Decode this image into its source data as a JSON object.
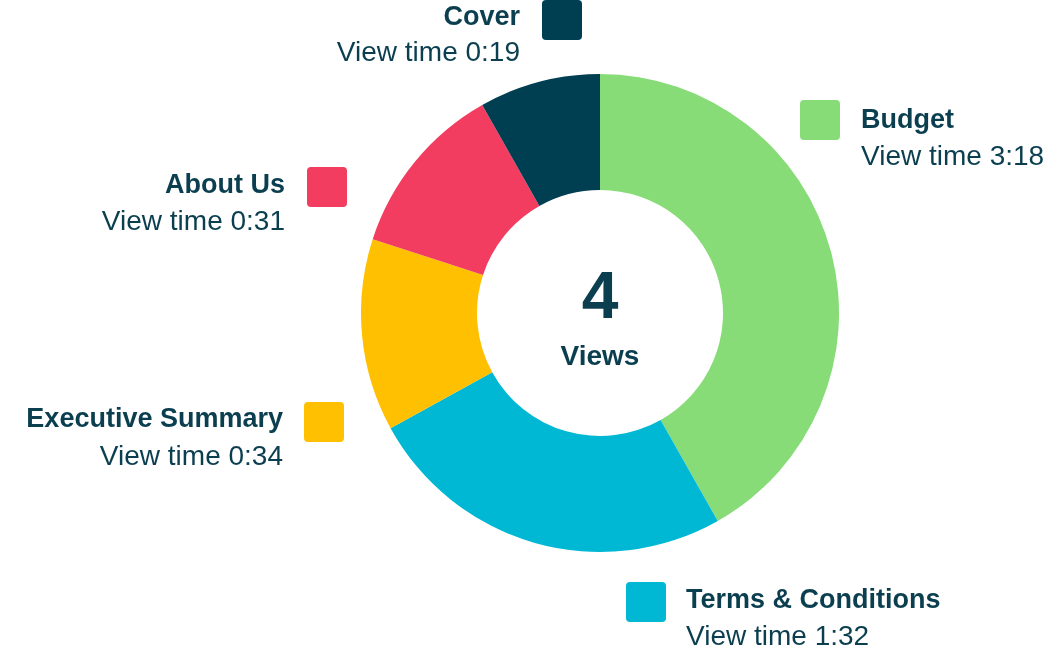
{
  "chart_data": {
    "type": "donut",
    "categories": [
      "Budget",
      "Terms & Conditions",
      "Executive Summary",
      "About Us",
      "Cover"
    ],
    "values": [
      41.8,
      25.2,
      13.0,
      11.8,
      8.2
    ],
    "colors": [
      "#87dc78",
      "#00b8d4",
      "#ffc001",
      "#f23d60",
      "#003e52"
    ],
    "value_labels": [
      "View time 3:18",
      "View time 1:32",
      "View time 0:34",
      "View time 0:31",
      "View time 0:19"
    ],
    "annotations": [
      "4",
      "Views"
    ],
    "legend": "left"
  }
}
